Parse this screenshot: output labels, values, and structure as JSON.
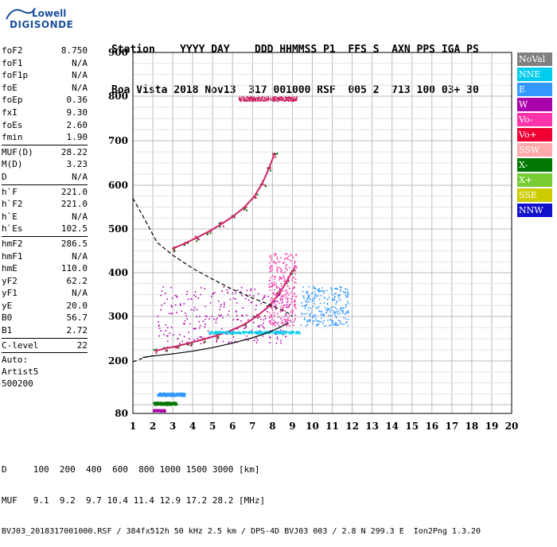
{
  "logo": {
    "line1": "Lowell",
    "line2": "DIGISONDE"
  },
  "header": {
    "line1": "Station    YYYY DAY    DDD HHMMSS P1  FFS S  AXN PPS IGA PS",
    "line2": "Boa Vista 2018 Nov13  317 001000 RSF  005 2  713 100 03+ 30"
  },
  "params": [
    {
      "label": "foF2",
      "value": "8.750"
    },
    {
      "label": "foF1",
      "value": "N/A"
    },
    {
      "label": "foF1p",
      "value": "N/A"
    },
    {
      "label": "foE",
      "value": "N/A"
    },
    {
      "label": "foEp",
      "value": "0.36"
    },
    {
      "label": "fxI",
      "value": "9.30"
    },
    {
      "label": "foEs",
      "value": "2.60"
    },
    {
      "label": "fmin",
      "value": "1.90"
    },
    {
      "sep": true
    },
    {
      "label": "MUF(D)",
      "value": "28.22"
    },
    {
      "label": "M(D)",
      "value": "3.23"
    },
    {
      "label": "D",
      "value": "N/A"
    },
    {
      "sep": true
    },
    {
      "label": "h`F",
      "value": "221.0"
    },
    {
      "label": "h`F2",
      "value": "221.0"
    },
    {
      "label": "h`E",
      "value": "N/A"
    },
    {
      "label": "h`Es",
      "value": "102.5"
    },
    {
      "sep": true
    },
    {
      "label": "hmF2",
      "value": "286.5"
    },
    {
      "label": "hmF1",
      "value": "N/A"
    },
    {
      "label": "hmE",
      "value": "110.0"
    },
    {
      "label": "yF2",
      "value": "62.2"
    },
    {
      "label": "yF1",
      "value": "N/A"
    },
    {
      "label": "yE",
      "value": "20.0"
    },
    {
      "label": "B0",
      "value": "56.7"
    },
    {
      "label": "B1",
      "value": "2.72"
    },
    {
      "sep": true
    },
    {
      "label": "C-level",
      "value": "22"
    },
    {
      "sep": true
    },
    {
      "text": "Auto:"
    },
    {
      "text": "Artist5"
    },
    {
      "text": "500200"
    }
  ],
  "legend": [
    {
      "label": "NoVal",
      "color": "#808080"
    },
    {
      "label": "NNE",
      "color": "#00ccee"
    },
    {
      "label": "E",
      "color": "#3399ff"
    },
    {
      "label": "W",
      "color": "#aa00aa"
    },
    {
      "label": "Vo-",
      "color": "#ff33aa"
    },
    {
      "label": "Vo+",
      "color": "#ee0033"
    },
    {
      "label": "SSW",
      "color": "#ffaaaa"
    },
    {
      "label": "X-",
      "color": "#007700"
    },
    {
      "label": "X+",
      "color": "#77cc33"
    },
    {
      "label": "SSE",
      "color": "#cccc00"
    },
    {
      "label": "NNW",
      "color": "#1111cc"
    }
  ],
  "footer": {
    "line1": "D     100  200  400  600  800 1000 1500 3000 [km]",
    "line2": "MUF   9.1  9.2  9.7 10.4 11.4 12.9 17.2 28.2 [MHz]",
    "line3": "BVJ03_2018317001000.RSF / 384fx512h 50 kHz 2.5 km / DPS-4D BVJ03 003 / 2.8 N 299.3 E  Ion2Png 1.3.20"
  },
  "chart_data": {
    "type": "scatter",
    "xlim": [
      1,
      20
    ],
    "ylim": [
      80,
      900
    ],
    "xticks": [
      "1",
      "2",
      "3",
      "4",
      "5",
      "6",
      "7",
      "8",
      "9",
      "10",
      "11",
      "12",
      "13",
      "14",
      "15",
      "16",
      "17",
      "18",
      "19",
      "20"
    ],
    "yticks": [
      "80",
      "200",
      "300",
      "400",
      "500",
      "600",
      "700",
      "800",
      "900"
    ],
    "grid": true,
    "series": [
      {
        "kind": "trace",
        "color": "#cc2266",
        "x": [
          2.1,
          2.6,
          3.2,
          3.8,
          4.5,
          5.2,
          5.9,
          6.6,
          7.2,
          7.8,
          8.3,
          8.7,
          9.0
        ],
        "y": [
          222,
          228,
          233,
          240,
          248,
          257,
          268,
          282,
          300,
          322,
          350,
          378,
          405
        ]
      },
      {
        "kind": "trace",
        "color": "#cc2266",
        "x": [
          3.0,
          3.6,
          4.2,
          4.8,
          5.4,
          6.0,
          6.6,
          7.1,
          7.5,
          7.8,
          8.1
        ],
        "y": [
          455,
          467,
          480,
          494,
          510,
          528,
          550,
          575,
          605,
          635,
          670
        ]
      },
      {
        "kind": "cloud",
        "color": "#aa00aa",
        "xr": [
          2.2,
          8.9
        ],
        "yr": [
          240,
          370
        ]
      },
      {
        "kind": "cloud",
        "color": "#ff33aa",
        "xr": [
          7.8,
          9.2
        ],
        "yr": [
          280,
          450
        ]
      },
      {
        "kind": "cloud",
        "color": "#3399ff",
        "xr": [
          9.4,
          11.8
        ],
        "yr": [
          280,
          370
        ]
      },
      {
        "kind": "cloud",
        "color": "#00ccee",
        "xr": [
          4.8,
          9.4
        ],
        "yr": [
          262,
          268
        ]
      },
      {
        "kind": "cloud",
        "color": "#aa00aa",
        "xr": [
          2.0,
          2.6
        ],
        "yr": [
          85,
          90
        ]
      },
      {
        "kind": "cloud",
        "color": "#007700",
        "xr": [
          2.0,
          3.2
        ],
        "yr": [
          100,
          107
        ]
      },
      {
        "kind": "cloud",
        "color": "#3399ff",
        "xr": [
          2.2,
          3.6
        ],
        "yr": [
          120,
          128
        ]
      },
      {
        "kind": "cloud",
        "color": "#cc2266",
        "xr": [
          6.3,
          9.2
        ],
        "yr": [
          790,
          800
        ]
      },
      {
        "kind": "dashed",
        "color": "#000000",
        "x": [
          1.0,
          1.5,
          2.2,
          3.0,
          4.0,
          5.0,
          6.0,
          7.0,
          7.8,
          8.5,
          8.9,
          9.0
        ],
        "y": [
          570,
          530,
          470,
          440,
          410,
          385,
          362,
          342,
          328,
          314,
          305,
          300
        ]
      },
      {
        "kind": "dashed",
        "color": "#000000",
        "x": [
          1.0,
          1.3,
          1.6,
          2.0
        ],
        "y": [
          198,
          203,
          208,
          212
        ]
      },
      {
        "kind": "solid",
        "color": "#000000",
        "x": [
          1.5,
          2.0,
          3.0,
          4.0,
          5.0,
          6.0,
          7.0,
          7.8,
          8.4,
          8.8
        ],
        "y": [
          208,
          211,
          216,
          222,
          230,
          240,
          252,
          264,
          276,
          286
        ]
      }
    ]
  }
}
